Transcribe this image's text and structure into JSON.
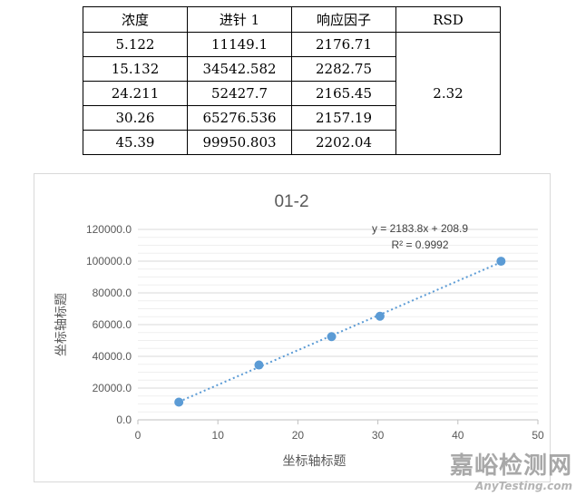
{
  "table": {
    "headers": [
      "浓度",
      "进针 1",
      "响应因子",
      "RSD"
    ],
    "rows": [
      [
        "5.122",
        "11149.1",
        "2176.71"
      ],
      [
        "15.132",
        "34542.582",
        "2282.75"
      ],
      [
        "24.211",
        "52427.7",
        "2165.45"
      ],
      [
        "30.26",
        "65276.536",
        "2157.19"
      ],
      [
        "45.39",
        "99950.803",
        "2202.04"
      ]
    ],
    "rsd": "2.32"
  },
  "chart_data": {
    "type": "scatter",
    "title": "01-2",
    "xlabel": "坐标轴标题",
    "ylabel": "坐标轴标题",
    "xlim": [
      0,
      50
    ],
    "ylim": [
      0,
      120000
    ],
    "xticks": [
      "0",
      "10",
      "20",
      "30",
      "40",
      "50"
    ],
    "yticks": [
      "0.0",
      "20000.0",
      "40000.0",
      "60000.0",
      "80000.0",
      "100000.0",
      "120000.0"
    ],
    "x": [
      5.122,
      15.132,
      24.211,
      30.26,
      45.39
    ],
    "y": [
      11149.1,
      34542.582,
      52427.7,
      65276.536,
      99950.803
    ],
    "trendline": {
      "type": "linear",
      "slope": 2183.8,
      "intercept": 208.9,
      "equation": "y = 2183.8x + 208.9",
      "r2": "R² = 0.9992"
    },
    "grid": true,
    "legend": "none",
    "marker_color": "#5b9bd5"
  },
  "watermark": {
    "cn": "嘉峪检测网",
    "en": "AnyTesting.com"
  }
}
